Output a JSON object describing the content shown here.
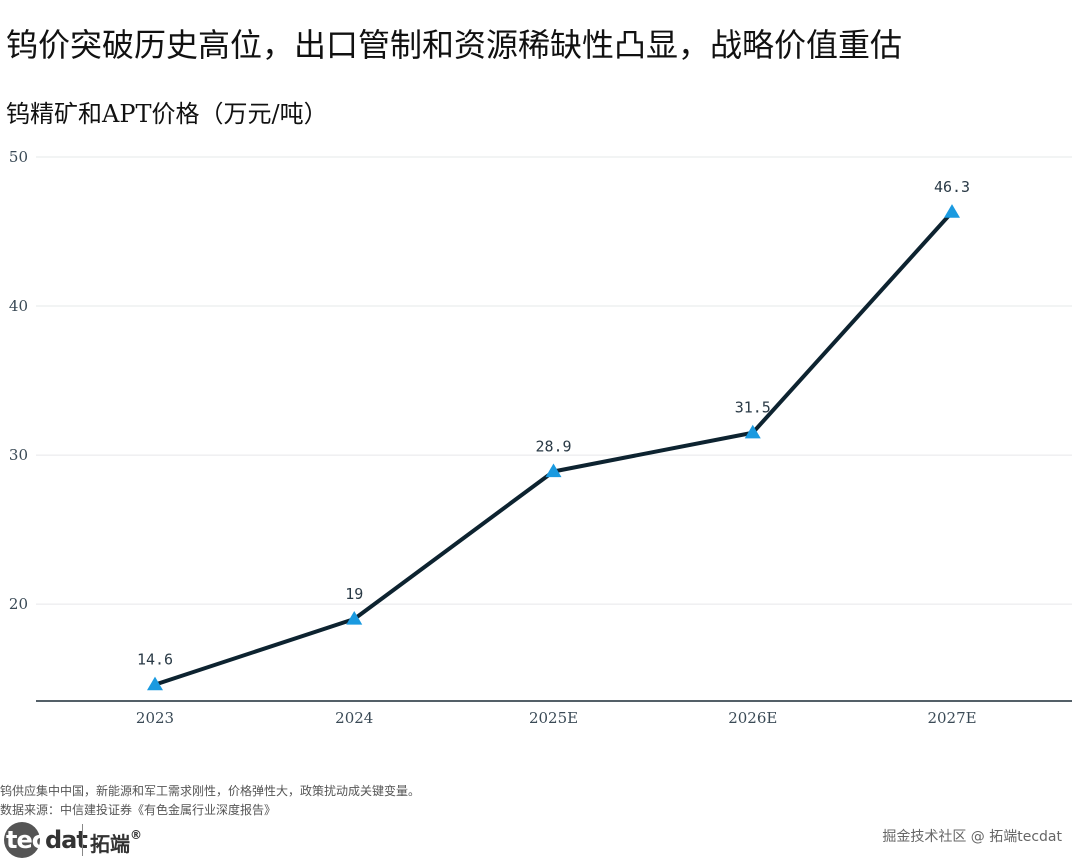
{
  "page": {
    "title": "钨价突破历史高位，出口管制和资源稀缺性凸显，战略价值重估",
    "footnote_1": "钨供应集中中国，新能源和军工需求刚性，价格弹性大，政策扰动成关键变量。",
    "footnote_2": "数据来源：中信建投证券《有色金属行业深度报告》",
    "logo_tec": "tec",
    "logo_dat": "dat",
    "logo_cn": "拓端",
    "logo_mark": "®",
    "watermark": "掘金技术社区 @ 拓端tecdat"
  },
  "chart_data": {
    "type": "line",
    "title": "钨精矿和APT价格（万元/吨）",
    "categories": [
      "2023",
      "2024",
      "2025E",
      "2026E",
      "2027E"
    ],
    "values": [
      14.6,
      19,
      28.9,
      31.5,
      46.3
    ],
    "data_labels": [
      "14.6",
      "19",
      "28.9",
      "31.5",
      "46.3"
    ],
    "y_ticks": [
      20,
      30,
      40,
      50
    ],
    "ylim": [
      13.5,
      50
    ],
    "grid": true,
    "legend": "none",
    "line_color": "#0d2330",
    "marker": "triangle",
    "marker_color": "#1a9ae0"
  }
}
